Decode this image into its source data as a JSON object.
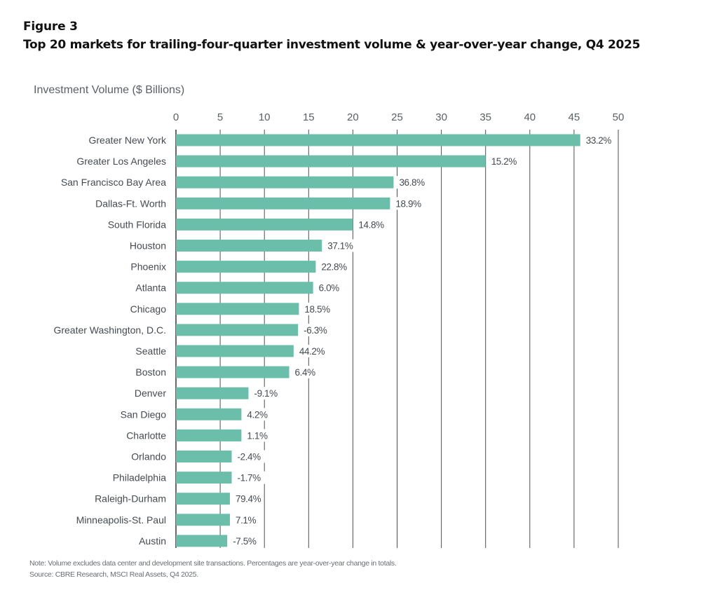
{
  "figure_label": "Figure 3",
  "figure_title": "Top 20 markets for trailing-four-quarter investment volume & year-over-year change, Q4 2025",
  "note": "Note: Volume excludes data center and development site transactions. Percentages are year-over-year change in totals.",
  "source": "Source: CBRE Research, MSCI Real Assets, Q4 2025.",
  "colors": {
    "bar": "#6bbfaa",
    "grid": "#4a4f52",
    "axis_text": "#5a6064",
    "label_text": "#454b4f"
  },
  "chart_data": {
    "type": "bar",
    "orientation": "horizontal",
    "title": "Top 20 markets for trailing-four-quarter investment volume & year-over-year change, Q4 2025",
    "xlabel": "Investment Volume ($ Billions)",
    "ylabel": "",
    "xlim": [
      0,
      50
    ],
    "xticks": [
      0,
      5,
      10,
      15,
      20,
      25,
      30,
      35,
      40,
      45,
      50
    ],
    "xtick_labels": [
      "0",
      "5",
      "10",
      "15",
      "20",
      "25",
      "30",
      "35",
      "40",
      "45",
      "50"
    ],
    "grid": true,
    "categories": [
      "Greater New York",
      "Greater Los Angeles",
      "San Francisco Bay Area",
      "Dallas-Ft. Worth",
      "South Florida",
      "Houston",
      "Phoenix",
      "Atlanta",
      "Chicago",
      "Greater Washington, D.C.",
      "Seattle",
      "Boston",
      "Denver",
      "San Diego",
      "Charlotte",
      "Orlando",
      "Philadelphia",
      "Raleigh-Durham",
      "Minneapolis-St. Paul",
      "Austin"
    ],
    "values": [
      45.7,
      35.0,
      24.6,
      24.2,
      20.0,
      16.5,
      15.8,
      15.5,
      13.9,
      13.8,
      13.3,
      12.8,
      8.2,
      7.4,
      7.4,
      6.3,
      6.3,
      6.1,
      6.1,
      5.8
    ],
    "data_labels": [
      "33.2%",
      "15.2%",
      "36.8%",
      "18.9%",
      "14.8%",
      "37.1%",
      "22.8%",
      "6.0%",
      "18.5%",
      "-6.3%",
      "44.2%",
      "6.4%",
      "-9.1%",
      "4.2%",
      "1.1%",
      "-2.4%",
      "-1.7%",
      "79.4%",
      "7.1%",
      "-7.5%"
    ],
    "data_label_meaning": "Year-over-year change in totals"
  }
}
